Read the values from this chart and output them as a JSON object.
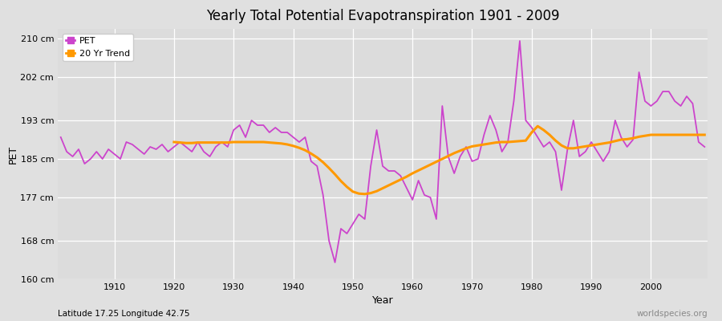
{
  "title": "Yearly Total Potential Evapotranspiration 1901 - 2009",
  "xlabel": "Year",
  "ylabel": "PET",
  "footer_left": "Latitude 17.25 Longitude 42.75",
  "footer_right": "worldspecies.org",
  "pet_color": "#cc44cc",
  "trend_color": "#ff9900",
  "bg_color": "#e0e0e0",
  "plot_bg_color": "#dcdcdc",
  "ylim": [
    160,
    212
  ],
  "yticks": [
    160,
    168,
    177,
    185,
    193,
    202,
    210
  ],
  "ytick_labels": [
    "160 cm",
    "168 cm",
    "177 cm",
    "185 cm",
    "193 cm",
    "202 cm",
    "210 cm"
  ],
  "years": [
    1901,
    1902,
    1903,
    1904,
    1905,
    1906,
    1907,
    1908,
    1909,
    1910,
    1911,
    1912,
    1913,
    1914,
    1915,
    1916,
    1917,
    1918,
    1919,
    1920,
    1921,
    1922,
    1923,
    1924,
    1925,
    1926,
    1927,
    1928,
    1929,
    1930,
    1931,
    1932,
    1933,
    1934,
    1935,
    1936,
    1937,
    1938,
    1939,
    1940,
    1941,
    1942,
    1943,
    1944,
    1945,
    1946,
    1947,
    1948,
    1949,
    1950,
    1951,
    1952,
    1953,
    1954,
    1955,
    1956,
    1957,
    1958,
    1959,
    1960,
    1961,
    1962,
    1963,
    1964,
    1965,
    1966,
    1967,
    1968,
    1969,
    1970,
    1971,
    1972,
    1973,
    1974,
    1975,
    1976,
    1977,
    1978,
    1979,
    1980,
    1981,
    1982,
    1983,
    1984,
    1985,
    1986,
    1987,
    1988,
    1989,
    1990,
    1991,
    1992,
    1993,
    1994,
    1995,
    1996,
    1997,
    1998,
    1999,
    2000,
    2001,
    2002,
    2003,
    2004,
    2005,
    2006,
    2007,
    2008,
    2009
  ],
  "pet_values": [
    189.5,
    186.5,
    185.5,
    187.0,
    184.0,
    185.0,
    186.5,
    185.0,
    187.0,
    186.0,
    185.0,
    188.5,
    188.0,
    187.0,
    186.0,
    187.5,
    187.0,
    188.0,
    186.5,
    187.5,
    188.5,
    187.5,
    186.5,
    188.5,
    186.5,
    185.5,
    187.5,
    188.5,
    187.5,
    191.0,
    192.0,
    189.5,
    193.0,
    192.0,
    192.0,
    190.5,
    191.5,
    190.5,
    190.5,
    189.5,
    188.5,
    189.5,
    184.5,
    183.5,
    177.5,
    168.0,
    163.5,
    170.5,
    169.5,
    171.5,
    173.5,
    172.5,
    183.5,
    191.0,
    183.5,
    182.5,
    182.5,
    181.5,
    179.0,
    176.5,
    180.5,
    177.5,
    177.0,
    172.5,
    196.0,
    185.5,
    182.0,
    185.5,
    187.5,
    184.5,
    185.0,
    190.0,
    194.0,
    191.0,
    186.5,
    188.5,
    197.0,
    209.5,
    193.0,
    191.5,
    189.5,
    187.5,
    188.5,
    186.5,
    178.5,
    187.0,
    193.0,
    185.5,
    186.5,
    188.5,
    186.5,
    184.5,
    186.5,
    193.0,
    189.5,
    187.5,
    189.0,
    203.0,
    197.0,
    196.0,
    197.0,
    199.0,
    199.0,
    197.0,
    196.0,
    198.0,
    196.5,
    188.5,
    187.5
  ],
  "trend_values": [
    null,
    null,
    null,
    null,
    null,
    null,
    null,
    null,
    null,
    null,
    null,
    null,
    null,
    null,
    null,
    null,
    null,
    null,
    null,
    188.5,
    188.4,
    188.3,
    188.3,
    188.4,
    188.4,
    188.4,
    188.4,
    188.4,
    188.4,
    188.5,
    188.5,
    188.5,
    188.5,
    188.5,
    188.5,
    188.4,
    188.3,
    188.2,
    188.0,
    187.7,
    187.3,
    186.8,
    186.1,
    185.3,
    184.3,
    183.1,
    181.8,
    180.4,
    179.2,
    178.2,
    177.8,
    177.7,
    177.9,
    178.3,
    178.9,
    179.5,
    180.1,
    180.7,
    181.3,
    182.0,
    182.6,
    183.2,
    183.8,
    184.4,
    185.0,
    185.6,
    186.2,
    186.7,
    187.2,
    187.6,
    187.8,
    188.0,
    188.2,
    188.4,
    188.5,
    188.5,
    188.6,
    188.7,
    188.8,
    190.5,
    191.8,
    191.0,
    190.0,
    188.8,
    187.8,
    187.2,
    187.2,
    187.4,
    187.6,
    187.8,
    188.0,
    188.2,
    188.4,
    188.7,
    189.0,
    189.1,
    189.3,
    189.6,
    189.8,
    190.0,
    190.0,
    190.0,
    190.0,
    190.0,
    190.0,
    190.0,
    190.0,
    190.0,
    190.0
  ]
}
